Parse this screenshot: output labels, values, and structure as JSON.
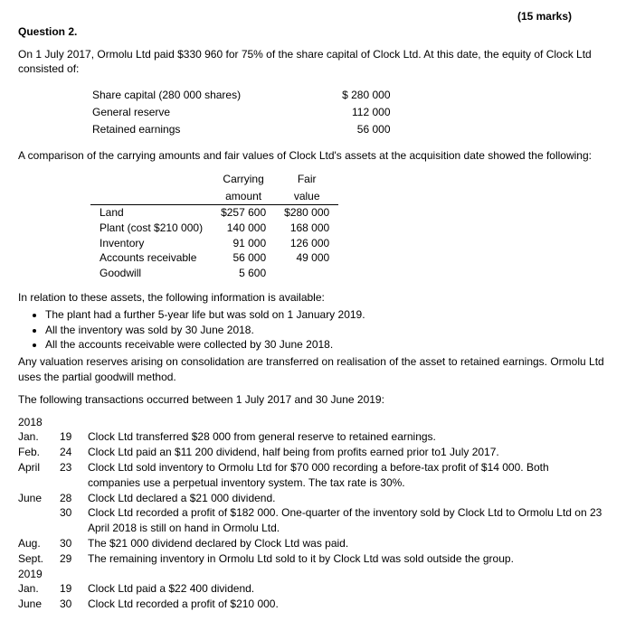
{
  "marks": "(15 marks)",
  "question_label": "Question 2.",
  "intro": "On 1 July 2017, Ormolu Ltd paid $330 960 for 75% of the share capital of Clock Ltd. At this date, the equity of Clock Ltd consisted of:",
  "equity": {
    "rows": [
      {
        "label": "Share capital (280 000 shares)",
        "value": "$ 280 000"
      },
      {
        "label": "General reserve",
        "value": "112 000"
      },
      {
        "label": "Retained earnings",
        "value": "56 000"
      }
    ]
  },
  "comparison_para": "A comparison of the carrying amounts and fair values of Clock Ltd's assets at the acquisition date showed the following:",
  "assets": {
    "head1_col1": "Carrying",
    "head1_col2": "Fair",
    "head2_col1": "amount",
    "head2_col2": "value",
    "rows": [
      {
        "label": "Land",
        "carrying": "$257 600",
        "fair": "$280 000"
      },
      {
        "label": "Plant (cost $210 000)",
        "carrying": "140 000",
        "fair": "168 000"
      },
      {
        "label": "Inventory",
        "carrying": "91 000",
        "fair": "126 000"
      },
      {
        "label": "Accounts receivable",
        "carrying": "56 000",
        "fair": "49 000"
      },
      {
        "label": "Goodwill",
        "carrying": "5 600",
        "fair": ""
      }
    ]
  },
  "relation_intro": "In relation to these assets, the following information is available:",
  "bullets": [
    "The plant had a further 5-year life but was sold on 1 January 2019.",
    "All the inventory was sold by 30 June 2018.",
    "All the accounts receivable were collected by 30 June 2018."
  ],
  "after_bullets": "Any valuation reserves arising on consolidation are transferred on realisation of the asset to retained earnings. Ormolu Ltd uses the partial goodwill method.",
  "trans_intro": "The following transactions occurred between 1 July 2017 and 30 June 2019:",
  "year_2018": "2018",
  "year_2019": "2019",
  "trans_2018": [
    {
      "month": "Jan.",
      "day": "19",
      "desc": "Clock Ltd transferred $28 000 from general reserve to retained earnings."
    },
    {
      "month": "Feb.",
      "day": "24",
      "desc": "Clock Ltd paid an $11 200 dividend, half being from profits earned prior to1 July 2017."
    },
    {
      "month": "April",
      "day": "23",
      "desc": "Clock Ltd sold inventory to Ormolu Ltd for $70 000 recording a before-tax profit of $14 000. Both companies use a perpetual inventory system. The tax rate is 30%."
    },
    {
      "month": "June",
      "day": "28",
      "desc": "Clock Ltd declared a $21 000 dividend."
    },
    {
      "month": "",
      "day": "30",
      "desc": "Clock Ltd recorded a profit of $182 000. One-quarter of the inventory sold by Clock Ltd to Ormolu Ltd on 23 April 2018 is still on hand in Ormolu Ltd."
    },
    {
      "month": "Aug.",
      "day": "30",
      "desc": "The $21 000 dividend declared by Clock Ltd was paid."
    },
    {
      "month": "Sept.",
      "day": "29",
      "desc": "The remaining inventory in Ormolu Ltd sold to it by Clock Ltd was sold outside the group."
    }
  ],
  "trans_2019": [
    {
      "month": "Jan.",
      "day": "19",
      "desc": "Clock Ltd paid a $22 400 dividend."
    },
    {
      "month": "June",
      "day": "30",
      "desc": "Clock Ltd recorded a profit of $210 000."
    }
  ]
}
